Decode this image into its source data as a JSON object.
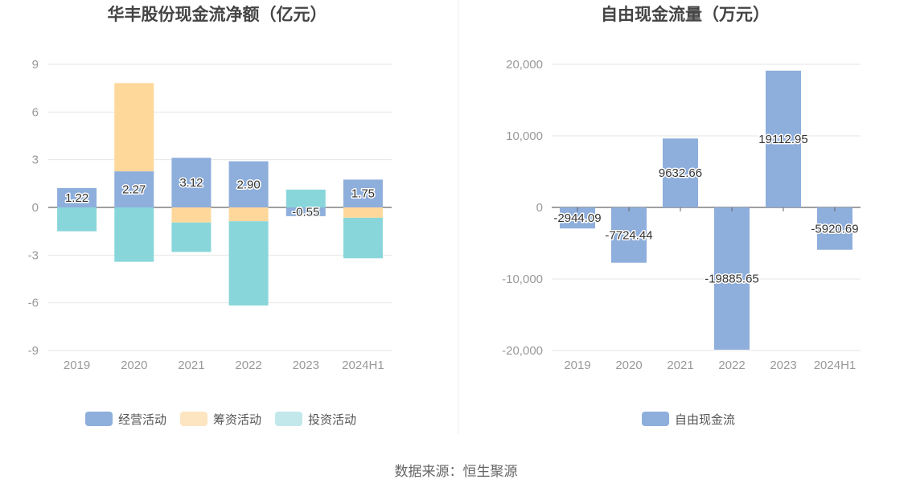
{
  "source": "数据来源：恒生聚源",
  "colors": {
    "operating": "#8eaedc",
    "financing": "#fed89b",
    "investing": "#88d6da",
    "investing_legend": "#c2e8ec",
    "financing_legend": "#fde5c2",
    "fcf": "#8eaedc"
  },
  "chart_data": [
    {
      "type": "bar",
      "stacked": true,
      "title": "华丰股份现金流净额（亿元）",
      "categories": [
        "2019",
        "2020",
        "2021",
        "2022",
        "2023",
        "2024H1"
      ],
      "ylim": [
        -9,
        9
      ],
      "yticks": [
        9,
        6,
        3,
        0,
        -3,
        -6,
        -9
      ],
      "ytick_labels": [
        "9",
        "6",
        "3",
        "0",
        "-3",
        "-6",
        "-9"
      ],
      "grid": true,
      "legend_position": "bottom",
      "series": [
        {
          "name": "经营活动",
          "color_key": "operating",
          "values": [
            1.22,
            2.27,
            3.12,
            2.9,
            -0.55,
            1.75
          ],
          "labels": [
            "1.22",
            "2.27",
            "3.12",
            "2.90",
            "-0.55",
            "1.75"
          ]
        },
        {
          "name": "筹资活动",
          "color_key": "financing",
          "values": [
            0,
            5.55,
            -0.95,
            -0.87,
            0,
            -0.65
          ]
        },
        {
          "name": "投资活动",
          "color_key": "investing",
          "values": [
            -1.5,
            -3.42,
            -1.85,
            -5.3,
            1.12,
            -2.55
          ]
        }
      ]
    },
    {
      "type": "bar",
      "title": "自由现金流量（万元）",
      "categories": [
        "2019",
        "2020",
        "2021",
        "2022",
        "2023",
        "2024H1"
      ],
      "ylim": [
        -20000,
        20000
      ],
      "yticks": [
        20000,
        10000,
        0,
        -10000,
        -20000
      ],
      "ytick_labels": [
        "20,000",
        "10,000",
        "0",
        "-10,000",
        "-20,000"
      ],
      "grid": true,
      "legend_position": "bottom",
      "series": [
        {
          "name": "自由现金流",
          "color_key": "fcf",
          "values": [
            -2944.09,
            -7724.44,
            9632.66,
            -19885.65,
            19112.95,
            -5920.69
          ],
          "labels": [
            "-2944.09",
            "-7724.44",
            "9632.66",
            "-19885.65",
            "19112.95",
            "-5920.69"
          ]
        }
      ]
    }
  ]
}
